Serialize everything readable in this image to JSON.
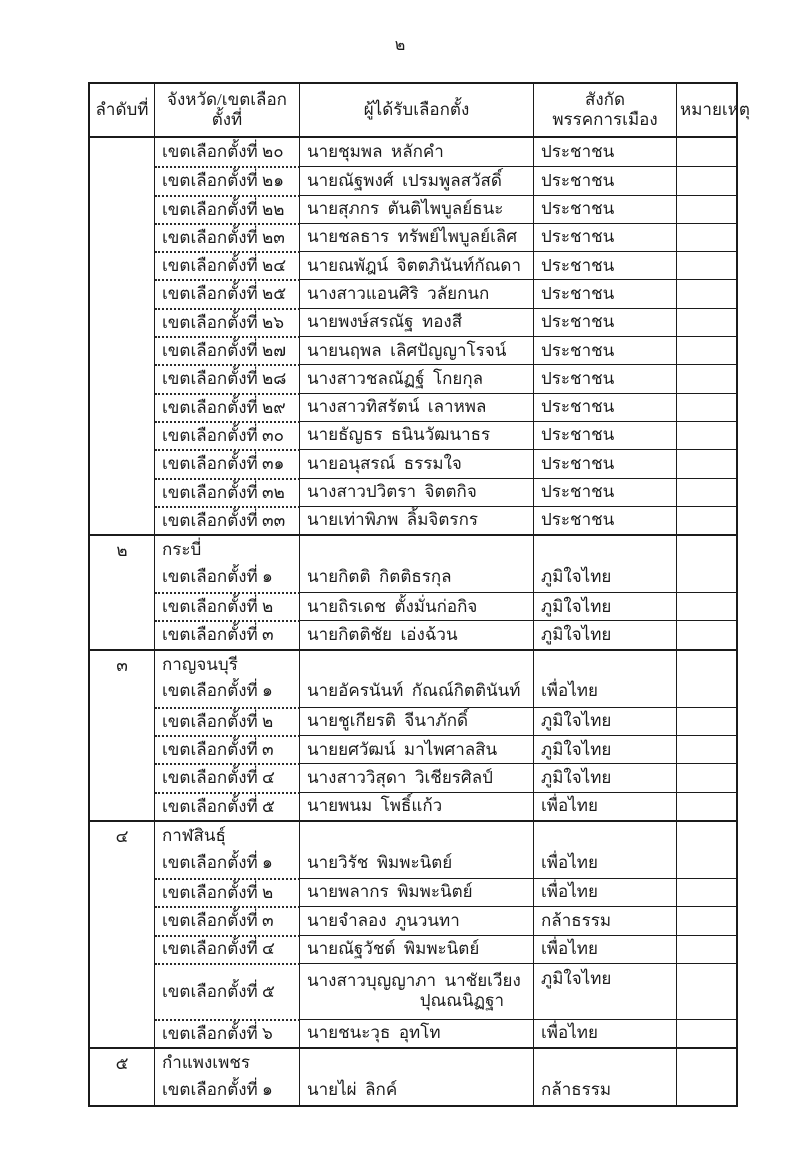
{
  "page": {
    "number": "๒"
  },
  "table": {
    "headers": [
      "ลำดับที่",
      "จังหวัด/เขตเลือกตั้งที่",
      "ผู้ได้รับเลือกตั้ง",
      "สังกัดพรรคการเมือง",
      "หมายเหตุ"
    ],
    "groups": [
      {
        "seq": "",
        "province": "",
        "rows": [
          {
            "district": "เขตเลือกตั้งที่ ๒๐",
            "winner": "นายชุมพล  หลักคำ",
            "party": "ประชาชน",
            "note": ""
          },
          {
            "district": "เขตเลือกตั้งที่ ๒๑",
            "winner": "นายณัฐพงศ์  เปรมพูลสวัสดิ์",
            "party": "ประชาชน",
            "note": ""
          },
          {
            "district": "เขตเลือกตั้งที่ ๒๒",
            "winner": "นายสุภกร  ตันติไพบูลย์ธนะ",
            "party": "ประชาชน",
            "note": ""
          },
          {
            "district": "เขตเลือกตั้งที่ ๒๓",
            "winner": "นายชลธาร  ทรัพย์ไพบูลย์เลิศ",
            "party": "ประชาชน",
            "note": ""
          },
          {
            "district": "เขตเลือกตั้งที่ ๒๔",
            "winner": "นายณพัฎน์  จิตตภินันท์กัณดา",
            "party": "ประชาชน",
            "note": ""
          },
          {
            "district": "เขตเลือกตั้งที่ ๒๕",
            "winner": "นางสาวแอนศิริ  วลัยกนก",
            "party": "ประชาชน",
            "note": ""
          },
          {
            "district": "เขตเลือกตั้งที่ ๒๖",
            "winner": "นายพงษ์สรณัฐ  ทองสี",
            "party": "ประชาชน",
            "note": ""
          },
          {
            "district": "เขตเลือกตั้งที่ ๒๗",
            "winner": "นายนฤพล  เลิศปัญญาโรจน์",
            "party": "ประชาชน",
            "note": ""
          },
          {
            "district": "เขตเลือกตั้งที่ ๒๘",
            "winner": "นางสาวชลณัฏฐ์  โกยกุล",
            "party": "ประชาชน",
            "note": ""
          },
          {
            "district": "เขตเลือกตั้งที่ ๒๙",
            "winner": "นางสาวทิสรัตน์  เลาหพล",
            "party": "ประชาชน",
            "note": ""
          },
          {
            "district": "เขตเลือกตั้งที่ ๓๐",
            "winner": "นายธัญธร  ธนินวัฒนาธร",
            "party": "ประชาชน",
            "note": ""
          },
          {
            "district": "เขตเลือกตั้งที่ ๓๑",
            "winner": "นายอนุสรณ์  ธรรมใจ",
            "party": "ประชาชน",
            "note": ""
          },
          {
            "district": "เขตเลือกตั้งที่ ๓๒",
            "winner": "นางสาวปวิตรา  จิตตกิจ",
            "party": "ประชาชน",
            "note": ""
          },
          {
            "district": "เขตเลือกตั้งที่ ๓๓",
            "winner": "นายเท่าพิภพ  ลิ้มจิตรกร",
            "party": "ประชาชน",
            "note": ""
          }
        ]
      },
      {
        "seq": "๒",
        "province": "กระบี่",
        "rows": [
          {
            "district": "เขตเลือกตั้งที่ ๑",
            "winner": "นายกิตติ  กิตติธรกุล",
            "party": "ภูมิใจไทย",
            "note": ""
          },
          {
            "district": "เขตเลือกตั้งที่ ๒",
            "winner": "นายถิรเดช  ตั้งมั่นก่อกิจ",
            "party": "ภูมิใจไทย",
            "note": ""
          },
          {
            "district": "เขตเลือกตั้งที่ ๓",
            "winner": "นายกิตติชัย  เอ่งฉ้วน",
            "party": "ภูมิใจไทย",
            "note": ""
          }
        ]
      },
      {
        "seq": "๓",
        "province": "กาญจนบุรี",
        "rows": [
          {
            "district": "เขตเลือกตั้งที่ ๑",
            "winner": "นายอัครนันท์  กัณณ์กิตตินันท์",
            "party": "เพื่อไทย",
            "note": ""
          },
          {
            "district": "เขตเลือกตั้งที่ ๒",
            "winner": "นายชูเกียรติ  จีนาภักดิ์",
            "party": "ภูมิใจไทย",
            "note": ""
          },
          {
            "district": "เขตเลือกตั้งที่ ๓",
            "winner": "นายยศวัฒน์  มาไพศาลสิน",
            "party": "ภูมิใจไทย",
            "note": ""
          },
          {
            "district": "เขตเลือกตั้งที่ ๔",
            "winner": "นางสาววิสุดา  วิเชียรศิลป์",
            "party": "ภูมิใจไทย",
            "note": ""
          },
          {
            "district": "เขตเลือกตั้งที่ ๕",
            "winner": "นายพนม  โพธิ์แก้ว",
            "party": "เพื่อไทย",
            "note": ""
          }
        ]
      },
      {
        "seq": "๔",
        "province": "กาฬสินธุ์",
        "rows": [
          {
            "district": "เขตเลือกตั้งที่ ๑",
            "winner": "นายวิรัช  พิมพะนิตย์",
            "party": "เพื่อไทย",
            "note": ""
          },
          {
            "district": "เขตเลือกตั้งที่ ๒",
            "winner": "นายพลากร  พิมพะนิตย์",
            "party": "เพื่อไทย",
            "note": ""
          },
          {
            "district": "เขตเลือกตั้งที่ ๓",
            "winner": "นายจำลอง  ภูนวนทา",
            "party": "กล้าธรรม",
            "note": ""
          },
          {
            "district": "เขตเลือกตั้งที่ ๔",
            "winner": "นายณัฐวัชต์  พิมพะนิตย์",
            "party": "เพื่อไทย",
            "note": ""
          },
          {
            "district": "เขตเลือกตั้งที่ ๕",
            "winner": "นางสาวบุญญาภา  นาชัยเวียง",
            "winner_line2": "ปุณณนิฏฐา",
            "party": "ภูมิใจไทย",
            "note": ""
          },
          {
            "district": "เขตเลือกตั้งที่ ๖",
            "winner": "นายชนะวุธ  อุทโท",
            "party": "เพื่อไทย",
            "note": ""
          }
        ]
      },
      {
        "seq": "๕",
        "province": "กำแพงเพชร",
        "rows": [
          {
            "district": "เขตเลือกตั้งที่ ๑",
            "winner": "นายไผ่  ลิกค์",
            "party": "กล้าธรรม",
            "note": ""
          }
        ]
      }
    ]
  }
}
